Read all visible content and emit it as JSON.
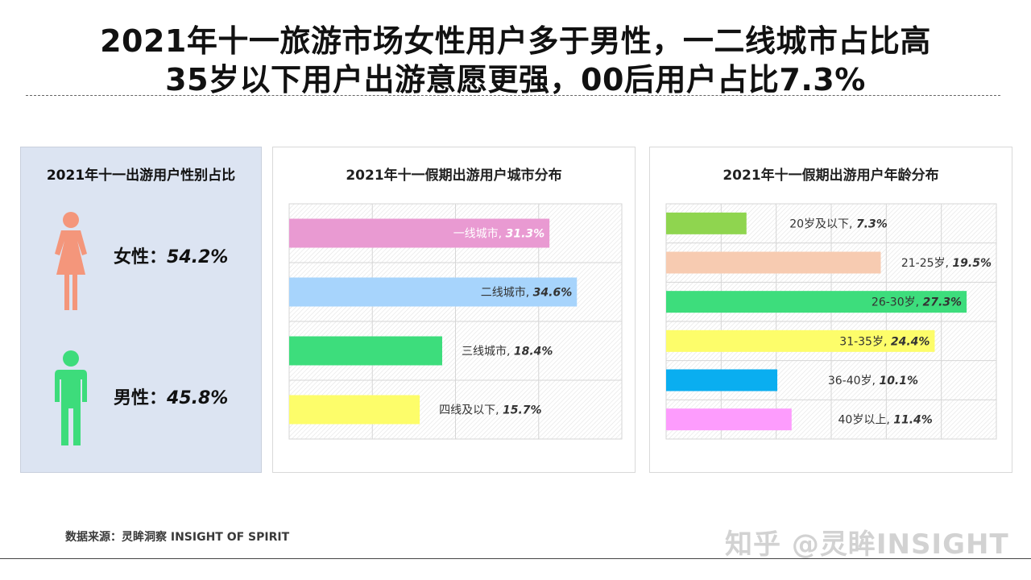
{
  "page": {
    "title_line1": "2021年十一旅游市场女性用户多于男性，一二线城市占比高",
    "title_line2": "35岁以下用户出游意愿更强，00后用户占比7.3%",
    "source": "数据来源：灵眸洞察 INSIGHT OF SPIRIT",
    "watermark": "知乎 @灵眸INSIGHT"
  },
  "gender": {
    "title": "2021年十一出游用户性别占比",
    "female": {
      "label": "女性：",
      "value_text": "54.2%",
      "value": 54.2,
      "color": "#f4967b",
      "icon": "female-person-icon"
    },
    "male": {
      "label": "男性：",
      "value_text": "45.8%",
      "value": 45.8,
      "color": "#3ddc7b",
      "icon": "male-person-icon"
    }
  },
  "chart_data": [
    {
      "type": "bar",
      "orientation": "horizontal",
      "title": "2021年十一假期出游用户城市分布",
      "categories": [
        "一线城市",
        "二线城市",
        "三线城市",
        "四线及以下"
      ],
      "values": [
        31.3,
        34.6,
        18.4,
        15.7
      ],
      "data_labels": [
        "31.3%",
        "34.6%",
        "18.4%",
        "15.7%"
      ],
      "colors": [
        "#e99ad2",
        "#a7d4fc",
        "#3ddd7c",
        "#fdfd6a"
      ],
      "xlim": [
        0,
        40
      ],
      "grid": true,
      "legend": "none"
    },
    {
      "type": "bar",
      "orientation": "horizontal",
      "title": "2021年十一假期出游用户年龄分布",
      "categories": [
        "20岁及以下",
        "21-25岁",
        "26-30岁",
        "31-35岁",
        "36-40岁",
        "40岁以上"
      ],
      "values": [
        7.3,
        19.5,
        27.3,
        24.4,
        10.1,
        11.4
      ],
      "data_labels": [
        "7.3%",
        "19.5%",
        "27.3%",
        "24.4%",
        "10.1%",
        "11.4%"
      ],
      "colors": [
        "#8fd54f",
        "#f7cbb1",
        "#3ddd7c",
        "#fdfd6a",
        "#0aaef0",
        "#fd9cfd"
      ],
      "xlim": [
        0,
        30
      ],
      "grid": true,
      "legend": "none"
    }
  ]
}
